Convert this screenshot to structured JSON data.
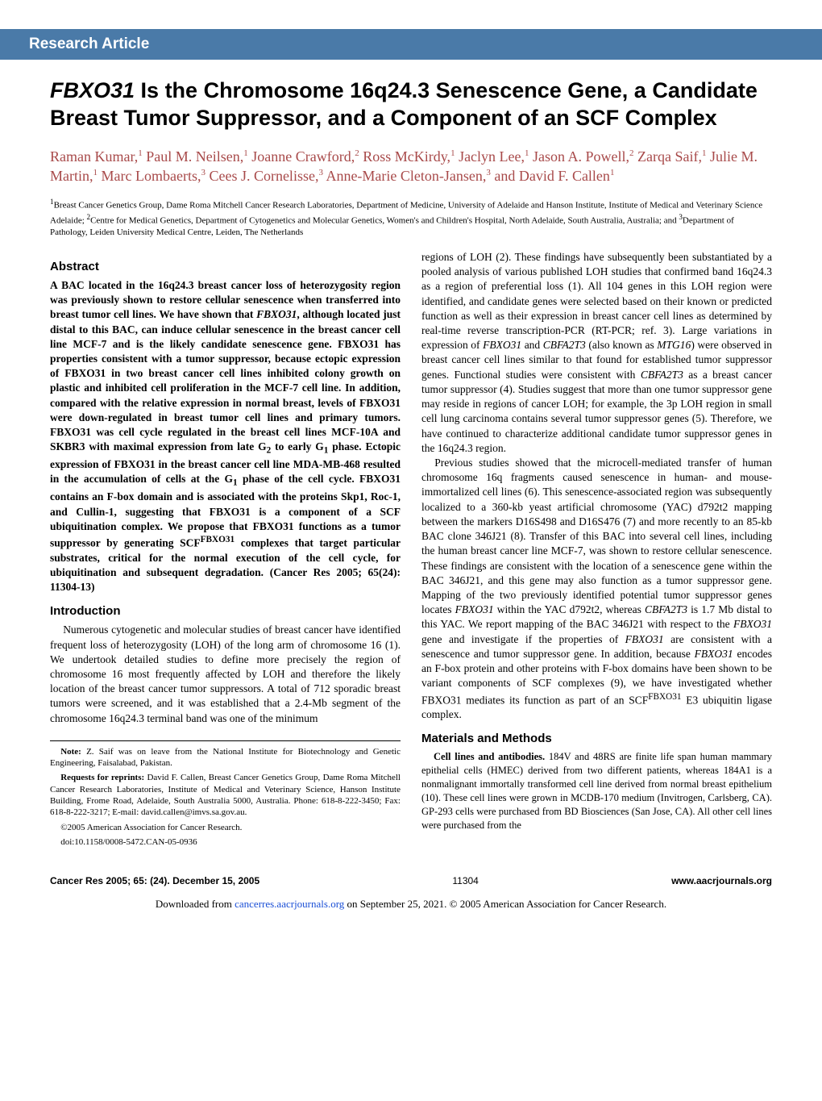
{
  "header_bar": "Research Article",
  "title_html": "<i>FBXO31</i> Is the Chromosome 16q24.3 Senescence Gene, a Candidate Breast Tumor Suppressor, and a Component of an SCF Complex",
  "authors_html": "Raman Kumar,<sup>1</sup> Paul M. Neilsen,<sup>1</sup> Joanne Crawford,<sup>2</sup> Ross McKirdy,<sup>1</sup> Jaclyn Lee,<sup>1</sup> Jason A. Powell,<sup>2</sup> Zarqa Saif,<sup>1</sup> Julie M. Martin,<sup>1</sup> Marc Lombaerts,<sup>3</sup> Cees J. Cornelisse,<sup>3</sup> Anne-Marie Cleton-Jansen,<sup>3</sup> and David F. Callen<sup>1</sup>",
  "affiliations_html": "<sup>1</sup>Breast Cancer Genetics Group, Dame Roma Mitchell Cancer Research Laboratories, Department of Medicine, University of Adelaide and Hanson Institute, Institute of Medical and Veterinary Science Adelaide; <sup>2</sup>Centre for Medical Genetics, Department of Cytogenetics and Molecular Genetics, Women's and Children's Hospital, North Adelaide, South Australia, Australia; and <sup>3</sup>Department of Pathology, Leiden University Medical Centre, Leiden, The Netherlands",
  "abstract_heading": "Abstract",
  "abstract_html": "A BAC located in the 16q24.3 breast cancer loss of heterozygosity region was previously shown to restore cellular senescence when transferred into breast tumor cell lines. We have shown that <i>FBXO31</i>, although located just distal to this BAC, can induce cellular senescence in the breast cancer cell line MCF-7 and is the likely candidate senescence gene. FBXO31 has properties consistent with a tumor suppressor, because ectopic expression of FBXO31 in two breast cancer cell lines inhibited colony growth on plastic and inhibited cell proliferation in the MCF-7 cell line. In addition, compared with the relative expression in normal breast, levels of FBXO31 were down-regulated in breast tumor cell lines and primary tumors. FBXO31 was cell cycle regulated in the breast cell lines MCF-10A and SKBR3 with maximal expression from late G<sub>2</sub> to early G<sub>1</sub> phase. Ectopic expression of FBXO31 in the breast cancer cell line MDA-MB-468 resulted in the accumulation of cells at the G<sub>1</sub> phase of the cell cycle. FBXO31 contains an F-box domain and is associated with the proteins Skp1, Roc-1, and Cullin-1, suggesting that FBXO31 is a component of a SCF ubiquitination complex. We propose that FBXO31 functions as a tumor suppressor by generating SCF<sup>FBXO31</sup> complexes that target particular substrates, critical for the normal execution of the cell cycle, for ubiquitination and subsequent degradation. (Cancer Res 2005; 65(24): 11304-13)",
  "intro_heading": "Introduction",
  "intro_p1": "Numerous cytogenetic and molecular studies of breast cancer have identified frequent loss of heterozygosity (LOH) of the long arm of chromosome 16 (1). We undertook detailed studies to define more precisely the region of chromosome 16 most frequently affected by LOH and therefore the likely location of the breast cancer tumor suppressors. A total of 712 sporadic breast tumors were screened, and it was established that a 2.4-Mb segment of the chromosome 16q24.3 terminal band was one of the minimum",
  "note_p1_html": "<b>Note:</b> Z. Saif was on leave from the National Institute for Biotechnology and Genetic Engineering, Faisalabad, Pakistan.",
  "note_p2_html": "<b>Requests for reprints:</b> David F. Callen, Breast Cancer Genetics Group, Dame Roma Mitchell Cancer Research Laboratories, Institute of Medical and Veterinary Science, Hanson Institute Building, Frome Road, Adelaide, South Australia 5000, Australia. Phone: 618-8-222-3450; Fax: 618-8-222-3217; E-mail: david.callen@imvs.sa.gov.au.",
  "note_p3": "©2005 American Association for Cancer Research.",
  "note_p4": "doi:10.1158/0008-5472.CAN-05-0936",
  "right_p1_html": "regions of LOH (2). These findings have subsequently been substantiated by a pooled analysis of various published LOH studies that confirmed band 16q24.3 as a region of preferential loss (1). All 104 genes in this LOH region were identified, and candidate genes were selected based on their known or predicted function as well as their expression in breast cancer cell lines as determined by real-time reverse transcription-PCR (RT-PCR; ref. 3). Large variations in expression of <i>FBXO31</i> and <i>CBFA2T3</i> (also known as <i>MTG16</i>) were observed in breast cancer cell lines similar to that found for established tumor suppressor genes. Functional studies were consistent with <i>CBFA2T3</i> as a breast cancer tumor suppressor (4). Studies suggest that more than one tumor suppressor gene may reside in regions of cancer LOH; for example, the 3p LOH region in small cell lung carcinoma contains several tumor suppressor genes (5). Therefore, we have continued to characterize additional candidate tumor suppressor genes in the 16q24.3 region.",
  "right_p2_html": "Previous studies showed that the microcell-mediated transfer of human chromosome 16q fragments caused senescence in human- and mouse-immortalized cell lines (6). This senescence-associated region was subsequently localized to a 360-kb yeast artificial chromosome (YAC) d792t2 mapping between the markers D16S498 and D16S476 (7) and more recently to an 85-kb BAC clone 346J21 (8). Transfer of this BAC into several cell lines, including the human breast cancer line MCF-7, was shown to restore cellular senescence. These findings are consistent with the location of a senescence gene within the BAC 346J21, and this gene may also function as a tumor suppressor gene. Mapping of the two previously identified potential tumor suppressor genes locates <i>FBXO31</i> within the YAC d792t2, whereas <i>CBFA2T3</i> is 1.7 Mb distal to this YAC. We report mapping of the BAC 346J21 with respect to the <i>FBXO31</i> gene and investigate if the properties of <i>FBXO31</i> are consistent with a senescence and tumor suppressor gene. In addition, because <i>FBXO31</i> encodes an F-box protein and other proteins with F-box domains have been shown to be variant components of SCF complexes (9), we have investigated whether FBXO31 mediates its function as part of an SCF<sup>FBXO31</sup> E3 ubiquitin ligase complex.",
  "materials_heading": "Materials and Methods",
  "materials_p1_html": "<b>Cell lines and antibodies.</b> 184V and 48RS are finite life span human mammary epithelial cells (HMEC) derived from two different patients, whereas 184A1 is a nonmalignant immortally transformed cell line derived from normal breast epithelium (10). These cell lines were grown in MCDB-170 medium (Invitrogen, Carlsberg, CA). GP-293 cells were purchased from BD Biosciences (San Jose, CA). All other cell lines were purchased from the",
  "footer_left": "Cancer Res 2005; 65: (24). December 15, 2005",
  "footer_center": "11304",
  "footer_right": "www.aacrjournals.org",
  "download_html": "Downloaded from <a>cancerres.aacrjournals.org</a> on September 25, 2021. © 2005 American Association for Cancer Research.",
  "colors": {
    "header_bg": "#4a7aa8",
    "header_text": "#ffffff",
    "author_text": "#a84a4a",
    "body_text": "#000000",
    "link": "#1a4fd6",
    "background": "#ffffff"
  }
}
